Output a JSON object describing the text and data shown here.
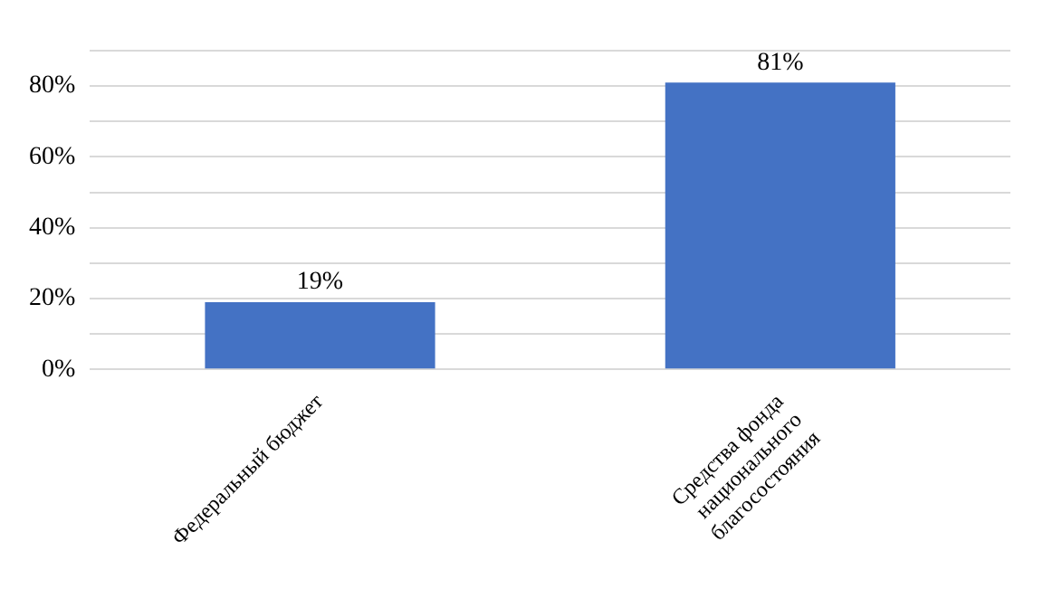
{
  "chart_data": {
    "type": "bar",
    "categories": [
      "Федеральный бюджет",
      "Средства фонда национального благосостояния"
    ],
    "values": [
      19,
      81
    ],
    "value_labels": [
      "19%",
      "81%"
    ],
    "color": "#4472c4",
    "ylim": [
      0,
      90
    ],
    "yticks": [
      {
        "value": 0,
        "label": "0%"
      },
      {
        "value": 10,
        "label": null
      },
      {
        "value": 20,
        "label": "20%"
      },
      {
        "value": 30,
        "label": null
      },
      {
        "value": 40,
        "label": "40%"
      },
      {
        "value": 50,
        "label": null
      },
      {
        "value": 60,
        "label": "60%"
      },
      {
        "value": 70,
        "label": null
      },
      {
        "value": 80,
        "label": "80%"
      },
      {
        "value": 90,
        "label": null
      }
    ],
    "grid": "y"
  }
}
